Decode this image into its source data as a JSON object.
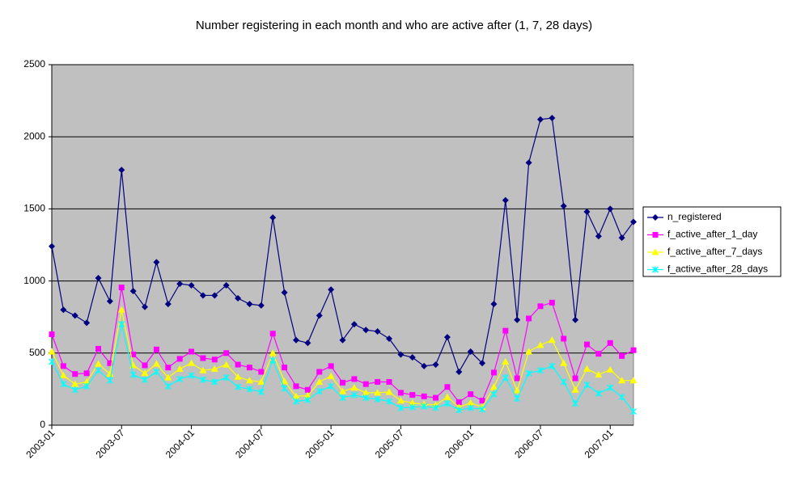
{
  "chart_data": {
    "type": "line",
    "title": "Number registering in each month and who are active after (1, 7, 28 days)",
    "categories": [
      "2003-01",
      null,
      null,
      null,
      null,
      null,
      "2003-07",
      null,
      null,
      null,
      null,
      null,
      "2004-01",
      null,
      null,
      null,
      null,
      null,
      "2004-07",
      null,
      null,
      null,
      null,
      null,
      "2005-01",
      null,
      null,
      null,
      null,
      null,
      "2005-07",
      null,
      null,
      null,
      null,
      null,
      "2006-01",
      null,
      null,
      null,
      null,
      null,
      "2006-07",
      null,
      null,
      null,
      null,
      null,
      "2007-01",
      null,
      null
    ],
    "series": [
      {
        "name": "n_registered",
        "color": "#000080",
        "marker": "diamond",
        "values": [
          1240,
          800,
          760,
          710,
          1020,
          860,
          1770,
          930,
          820,
          1130,
          840,
          980,
          970,
          900,
          900,
          970,
          880,
          840,
          830,
          1440,
          920,
          590,
          570,
          760,
          940,
          590,
          700,
          660,
          650,
          600,
          490,
          470,
          410,
          420,
          610,
          370,
          510,
          430,
          840,
          1560,
          730,
          1820,
          2120,
          2130,
          1520,
          730,
          1480,
          1310,
          1500,
          1300,
          1410
        ]
      },
      {
        "name": "f_active_after_1_day",
        "color": "#ff00ff",
        "marker": "square",
        "values": [
          630,
          410,
          355,
          360,
          530,
          430,
          955,
          490,
          415,
          525,
          400,
          460,
          510,
          465,
          455,
          500,
          420,
          400,
          370,
          635,
          400,
          270,
          245,
          370,
          410,
          295,
          320,
          285,
          300,
          300,
          225,
          210,
          200,
          190,
          265,
          160,
          215,
          170,
          365,
          655,
          325,
          740,
          825,
          850,
          600,
          325,
          560,
          495,
          570,
          480,
          520
        ]
      },
      {
        "name": "f_active_after_7_days",
        "color": "#ffff00",
        "marker": "triangle",
        "values": [
          510,
          345,
          285,
          300,
          425,
          355,
          800,
          415,
          360,
          425,
          330,
          390,
          430,
          380,
          390,
          420,
          335,
          310,
          300,
          500,
          305,
          200,
          205,
          300,
          340,
          235,
          260,
          225,
          225,
          230,
          170,
          155,
          145,
          140,
          195,
          125,
          155,
          125,
          265,
          440,
          240,
          510,
          555,
          590,
          430,
          245,
          390,
          350,
          385,
          310,
          310
        ]
      },
      {
        "name": "f_active_after_28_days",
        "color": "#00ffff",
        "marker": "x",
        "values": [
          440,
          285,
          245,
          270,
          380,
          310,
          700,
          350,
          315,
          370,
          270,
          320,
          345,
          315,
          300,
          330,
          265,
          250,
          230,
          450,
          255,
          165,
          175,
          235,
          270,
          190,
          210,
          190,
          180,
          165,
          120,
          125,
          130,
          120,
          150,
          105,
          120,
          110,
          215,
          330,
          185,
          360,
          380,
          410,
          300,
          150,
          280,
          220,
          260,
          195,
          95
        ]
      }
    ],
    "ylim": [
      0,
      2500
    ],
    "yticks": [
      0,
      500,
      1000,
      1500,
      2000,
      2500
    ],
    "grid": true,
    "legend": "right",
    "plot_background": "#c0c0c0"
  }
}
